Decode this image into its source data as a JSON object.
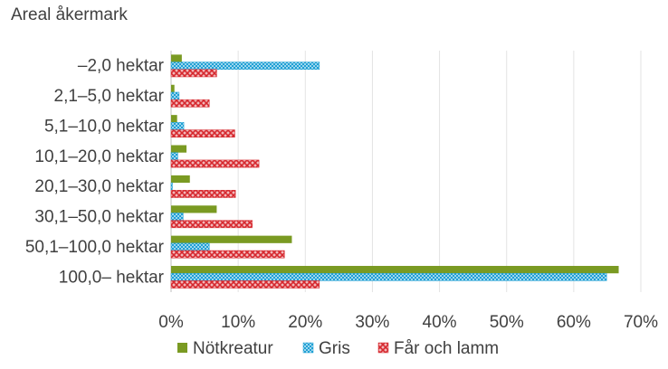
{
  "chart_data": {
    "type": "bar",
    "orientation": "horizontal",
    "title": "Areal åkermark",
    "categories": [
      "–2,0 hektar",
      "2,1–5,0 hektar",
      "5,1–10,0 hektar",
      "10,1–20,0 hektar",
      "20,1–30,0 hektar",
      "30,1–50,0 hektar",
      "50,1–100,0 hektar",
      "100,0– hektar"
    ],
    "series": [
      {
        "name": "Nötkreatur",
        "color": "#7a9a22",
        "pattern": "solid",
        "values": [
          1.6,
          0.5,
          0.9,
          2.3,
          2.8,
          6.8,
          18.0,
          66.7
        ]
      },
      {
        "name": "Gris",
        "color": "#1fa0d3",
        "pattern": "checker",
        "values": [
          22.1,
          1.2,
          1.9,
          1.0,
          0.2,
          1.8,
          5.7,
          64.9
        ]
      },
      {
        "name": "Får och lamm",
        "color": "#d6282e",
        "pattern": "crosshatch",
        "values": [
          6.8,
          5.7,
          9.5,
          13.1,
          9.6,
          12.1,
          16.9,
          22.1
        ]
      }
    ],
    "xlim": [
      0,
      70
    ],
    "xticks": [
      0,
      10,
      20,
      30,
      40,
      50,
      60,
      70
    ],
    "xtick_labels": [
      "0%",
      "10%",
      "20%",
      "30%",
      "40%",
      "50%",
      "60%",
      "70%"
    ],
    "grid": "vertical",
    "legend_position": "bottom"
  }
}
